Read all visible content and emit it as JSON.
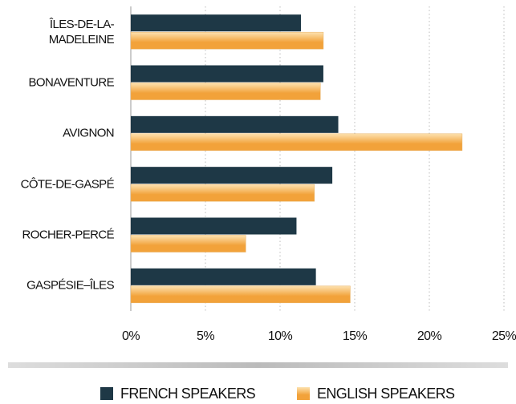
{
  "chart_data": {
    "type": "bar",
    "orientation": "horizontal",
    "categories": [
      "ÎLES-DE-LA-MADELEINE",
      "BONAVENTURE",
      "AVIGNON",
      "CÔTE-DE-GASPÉ",
      "ROCHER-PERCÉ",
      "GASPÉSIE–ÎLES"
    ],
    "series": [
      {
        "name": "FRENCH SPEAKERS",
        "color": "#1e3846",
        "values": [
          11.4,
          12.9,
          13.9,
          13.5,
          11.1,
          12.4
        ]
      },
      {
        "name": "ENGLISH SPEAKERS",
        "color": "#f2a23a",
        "values": [
          12.9,
          12.7,
          22.2,
          12.3,
          7.7,
          14.7
        ]
      }
    ],
    "xlim": [
      0,
      25
    ],
    "xticks": [
      {
        "value": 0,
        "label": "0%"
      },
      {
        "value": 5,
        "label": "5%"
      },
      {
        "value": 10,
        "label": "10%"
      },
      {
        "value": 15,
        "label": "15%"
      },
      {
        "value": 20,
        "label": "20%"
      },
      {
        "value": 25,
        "label": "25%"
      }
    ],
    "grid": true,
    "legend": "bottom"
  }
}
